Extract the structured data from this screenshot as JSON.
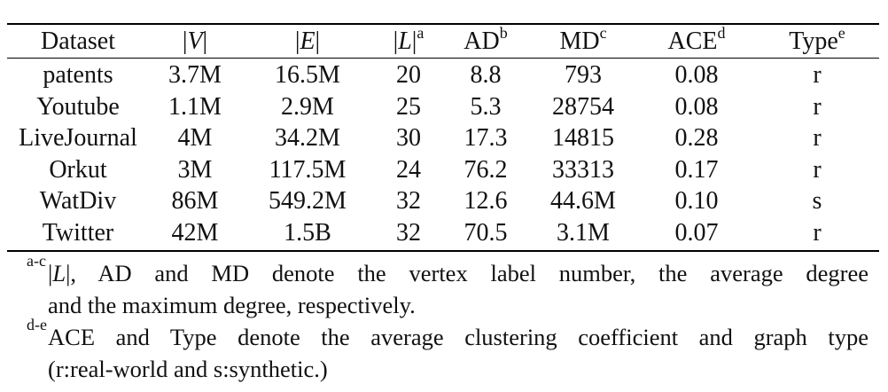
{
  "table": {
    "headers": [
      {
        "text": "Dataset",
        "sup": ""
      },
      {
        "text": "|V|",
        "sup": ""
      },
      {
        "text": "|E|",
        "sup": ""
      },
      {
        "text": "|L|",
        "sup": "a"
      },
      {
        "text": "AD",
        "sup": "b"
      },
      {
        "text": "MD",
        "sup": "c"
      },
      {
        "text": "ACE",
        "sup": "d"
      },
      {
        "text": "Type",
        "sup": "e"
      }
    ],
    "rows": [
      [
        "patents",
        "3.7M",
        "16.5M",
        "20",
        "8.8",
        "793",
        "0.08",
        "r"
      ],
      [
        "Youtube",
        "1.1M",
        "2.9M",
        "25",
        "5.3",
        "28754",
        "0.08",
        "r"
      ],
      [
        "LiveJournal",
        "4M",
        "34.2M",
        "30",
        "17.3",
        "14815",
        "0.28",
        "r"
      ],
      [
        "Orkut",
        "3M",
        "117.5M",
        "24",
        "76.2",
        "33313",
        "0.17",
        "r"
      ],
      [
        "WatDiv",
        "86M",
        "549.2M",
        "32",
        "12.6",
        "44.6M",
        "0.10",
        "s"
      ],
      [
        "Twitter",
        "42M",
        "1.5B",
        "32",
        "70.5",
        "3.1M",
        "0.07",
        "r"
      ]
    ]
  },
  "footnotes": [
    {
      "mark": "a-c",
      "line1": "|L|, AD and MD denote the vertex label number, the average degree",
      "line2": "and the maximum degree, respectively."
    },
    {
      "mark": "d-e",
      "line1": "ACE and Type denote the average clustering coefficient and graph type",
      "line2": "(r:real-world and s:synthetic.)"
    }
  ]
}
